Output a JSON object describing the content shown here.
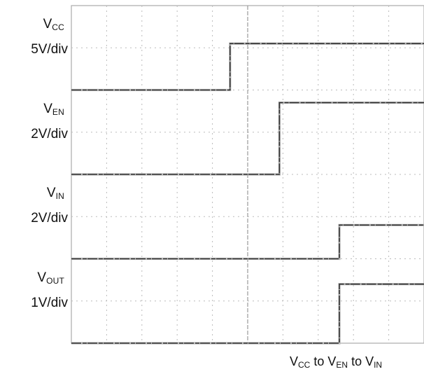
{
  "chart_data": {
    "type": "line",
    "x_divisions": 10,
    "y_divisions": 8,
    "grid": true,
    "caption": {
      "parts": [
        {
          "main": "V",
          "sub": "CC"
        },
        {
          "text": " to "
        },
        {
          "main": "V",
          "sub": "EN"
        },
        {
          "text": " to "
        },
        {
          "main": "V",
          "sub": "IN"
        }
      ]
    },
    "series": [
      {
        "name": {
          "main": "V",
          "sub": "CC"
        },
        "scale": "5V/div",
        "baseline_div": 6.0,
        "low_div": 0.0,
        "high_div": 1.1,
        "step_x_div": 4.5
      },
      {
        "name": {
          "main": "V",
          "sub": "EN"
        },
        "scale": "2V/div",
        "baseline_div": 4.0,
        "low_div": 0.0,
        "high_div": 1.7,
        "step_x_div": 5.9
      },
      {
        "name": {
          "main": "V",
          "sub": "IN"
        },
        "scale": "2V/div",
        "baseline_div": 2.0,
        "low_div": 0.0,
        "high_div": 0.8,
        "step_x_div": 7.6
      },
      {
        "name": {
          "main": "V",
          "sub": "OUT"
        },
        "scale": "1V/div",
        "baseline_div": 0.0,
        "low_div": 0.0,
        "high_div": 1.4,
        "step_x_div": 7.6
      }
    ]
  }
}
